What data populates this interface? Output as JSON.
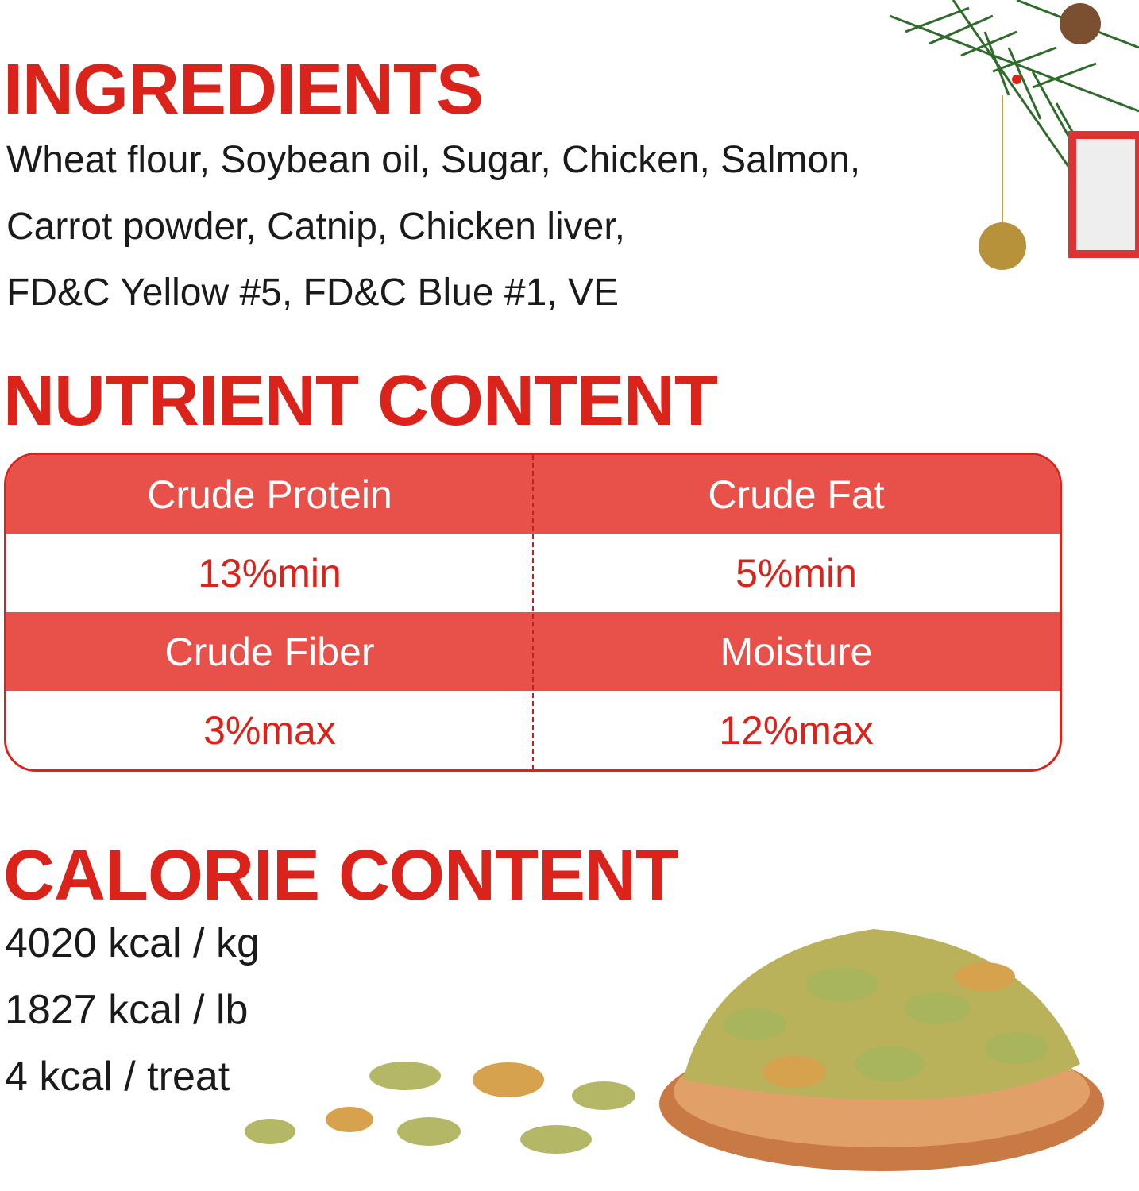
{
  "ingredients": {
    "heading": "INGREDIENTS",
    "lines": [
      "Wheat flour, Soybean oil, Sugar, Chicken, Salmon,",
      "Carrot powder, Catnip, Chicken liver,",
      "FD&C Yellow #5, FD&C Blue #1, VE"
    ]
  },
  "nutrient": {
    "heading": "NUTRIENT CONTENT",
    "rows": [
      {
        "labels": [
          "Crude Protein",
          "Crude Fat"
        ],
        "values": [
          "13%min",
          "5%min"
        ]
      },
      {
        "labels": [
          "Crude Fiber",
          "Moisture"
        ],
        "values": [
          "3%max",
          "12%max"
        ]
      }
    ]
  },
  "calorie": {
    "heading": "CALORIE CONTENT",
    "lines": [
      "4020 kcal / kg",
      "1827 kcal / lb",
      "4 kcal / treat"
    ]
  },
  "colors": {
    "accent": "#d9231b",
    "header_fill": "#e8504a"
  },
  "decorations": [
    "pine-branch-ornament",
    "fish-shaped-treats-in-wooden-bowl"
  ]
}
